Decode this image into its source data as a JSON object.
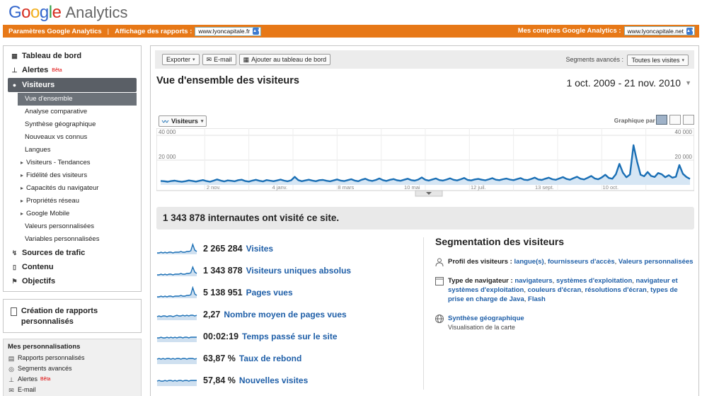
{
  "header": {
    "logo_word": "Google",
    "logo_product": "Analytics",
    "logo_colors": [
      "#3366cc",
      "#d62d20",
      "#f2b01e",
      "#3366cc",
      "#2f9e44",
      "#d62d20"
    ]
  },
  "topbar": {
    "settings": "Paramètres Google Analytics",
    "separator": "|",
    "reports_view_label": "Affichage des rapports :",
    "reports_view_value": "www.lyoncapitale.fr",
    "accounts_label": "Mes comptes Google Analytics :",
    "accounts_value": "www.lyoncapitale.net",
    "bar_color": "#e77817"
  },
  "sidebar": {
    "main": [
      {
        "label": "Tableau de bord",
        "icon": "grid-icon"
      },
      {
        "label": "Alertes",
        "beta": "Bêta",
        "icon": "alert-chart-icon"
      },
      {
        "label": "Visiteurs",
        "icon": "person-icon"
      }
    ],
    "visitors_sub": [
      "Vue d'ensemble",
      "Analyse comparative",
      "Synthèse géographique",
      "Nouveaux vs connus",
      "Langues",
      "Visiteurs - Tendances",
      "Fidélité des visiteurs",
      "Capacités du navigateur",
      "Propriétés réseau",
      "Google Mobile",
      "Valeurs personnalisées",
      "Variables personnalisées"
    ],
    "other_main": [
      {
        "label": "Sources de trafic",
        "icon": "traffic-icon"
      },
      {
        "label": "Contenu",
        "icon": "page-icon"
      },
      {
        "label": "Objectifs",
        "icon": "flag-icon"
      }
    ],
    "custom_reports": "Création de rapports personnalisés",
    "perso": {
      "title": "Mes personnalisations",
      "items": [
        {
          "label": "Rapports personnalisés",
          "icon": "report-icon"
        },
        {
          "label": "Segments avancés",
          "icon": "segment-icon"
        },
        {
          "label": "Alertes",
          "beta": "Bêta",
          "icon": "alert-chart-icon"
        },
        {
          "label": "E-mail",
          "icon": "mail-icon"
        }
      ]
    }
  },
  "toolbar": {
    "export": "Exporter",
    "email": "E-mail",
    "add_dashboard": "Ajouter au tableau de bord",
    "segments_label": "Segments avancés :",
    "segments_value": "Toutes les visites"
  },
  "page": {
    "title": "Vue d'ensemble des visiteurs",
    "date_range": "1 oct. 2009 - 21 nov. 2010"
  },
  "chart_controls": {
    "metric_button": "Visiteurs",
    "graph_by": "Graphique par :"
  },
  "chart_data": {
    "type": "line",
    "series": [
      {
        "name": "Visiteurs",
        "color": "#1a6fb5"
      }
    ],
    "y_ticks": [
      "40 000",
      "20 000"
    ],
    "ylim": [
      0,
      40000
    ],
    "x_labels": [
      "2 nov.",
      "4 janv.",
      "8 mars",
      "10 mai",
      "12 juil.",
      "13 sept.",
      "10 oct."
    ],
    "values": [
      3200,
      3000,
      2600,
      3100,
      3400,
      2900,
      2500,
      3000,
      3600,
      3200,
      2700,
      3300,
      3900,
      3100,
      2600,
      3400,
      4400,
      3500,
      2800,
      3600,
      3300,
      2900,
      3800,
      4200,
      3100,
      2700,
      3500,
      4100,
      3300,
      2800,
      3900,
      3400,
      3000,
      3600,
      4300,
      3400,
      2900,
      3700,
      6500,
      3800,
      3000,
      3600,
      4200,
      3500,
      3000,
      3800,
      4000,
      3300,
      2900,
      3600,
      4400,
      3500,
      3100,
      3800,
      4600,
      3500,
      3000,
      4200,
      5000,
      3700,
      3200,
      4000,
      5200,
      3800,
      3200,
      4100,
      4700,
      3700,
      3300,
      4200,
      5000,
      3800,
      3400,
      4300,
      6000,
      4100,
      3500,
      4400,
      5200,
      3900,
      3500,
      4300,
      5300,
      4100,
      3600,
      4500,
      5600,
      4000,
      3600,
      4400,
      4800,
      4200,
      3700,
      4500,
      5400,
      4200,
      3800,
      4600,
      5100,
      4300,
      3800,
      4700,
      5500,
      4200,
      3900,
      4800,
      5900,
      4400,
      4000,
      5000,
      5800,
      4600,
      4100,
      5200,
      6300,
      4800,
      4200,
      5400,
      6600,
      5000,
      4400,
      5700,
      7200,
      5200,
      4500,
      6000,
      8200,
      5600,
      5000,
      8600,
      17000,
      9800,
      6200,
      8400,
      32000,
      19000,
      8200,
      7000,
      10400,
      7200,
      6400,
      9600,
      8600,
      6200,
      7800,
      5800,
      6600,
      16000,
      9000,
      6400,
      4800
    ]
  },
  "summary": "1 343 878 internautes ont visité ce site.",
  "metrics": [
    {
      "value": "2 265 284",
      "label": "Visites"
    },
    {
      "value": "1 343 878",
      "label": "Visiteurs uniques absolus"
    },
    {
      "value": "5 138 951",
      "label": "Pages vues"
    },
    {
      "value": "2,27",
      "label": "Nombre moyen de pages vues"
    },
    {
      "value": "00:02:19",
      "label": "Temps passé sur le site"
    },
    {
      "value": "63,87 %",
      "label": "Taux de rebond"
    },
    {
      "value": "57,84 %",
      "label": "Nouvelles visites"
    }
  ],
  "segmentation": {
    "title": "Segmentation des visiteurs",
    "profile_head": "Profil des visiteurs :",
    "profile_links": [
      "langue(s)",
      "fournisseurs d'accès",
      "Valeurs personnalisées"
    ],
    "browser_head": "Type de navigateur :",
    "browser_links": [
      "navigateurs",
      "systèmes d'exploitation",
      "navigateur et systèmes d'exploitation",
      "couleurs d'écran",
      "résolutions d'écran",
      "types de prise en charge de Java",
      "Flash"
    ],
    "geo_link": "Synthèse géographique",
    "geo_sub": "Visualisation de la carte"
  }
}
